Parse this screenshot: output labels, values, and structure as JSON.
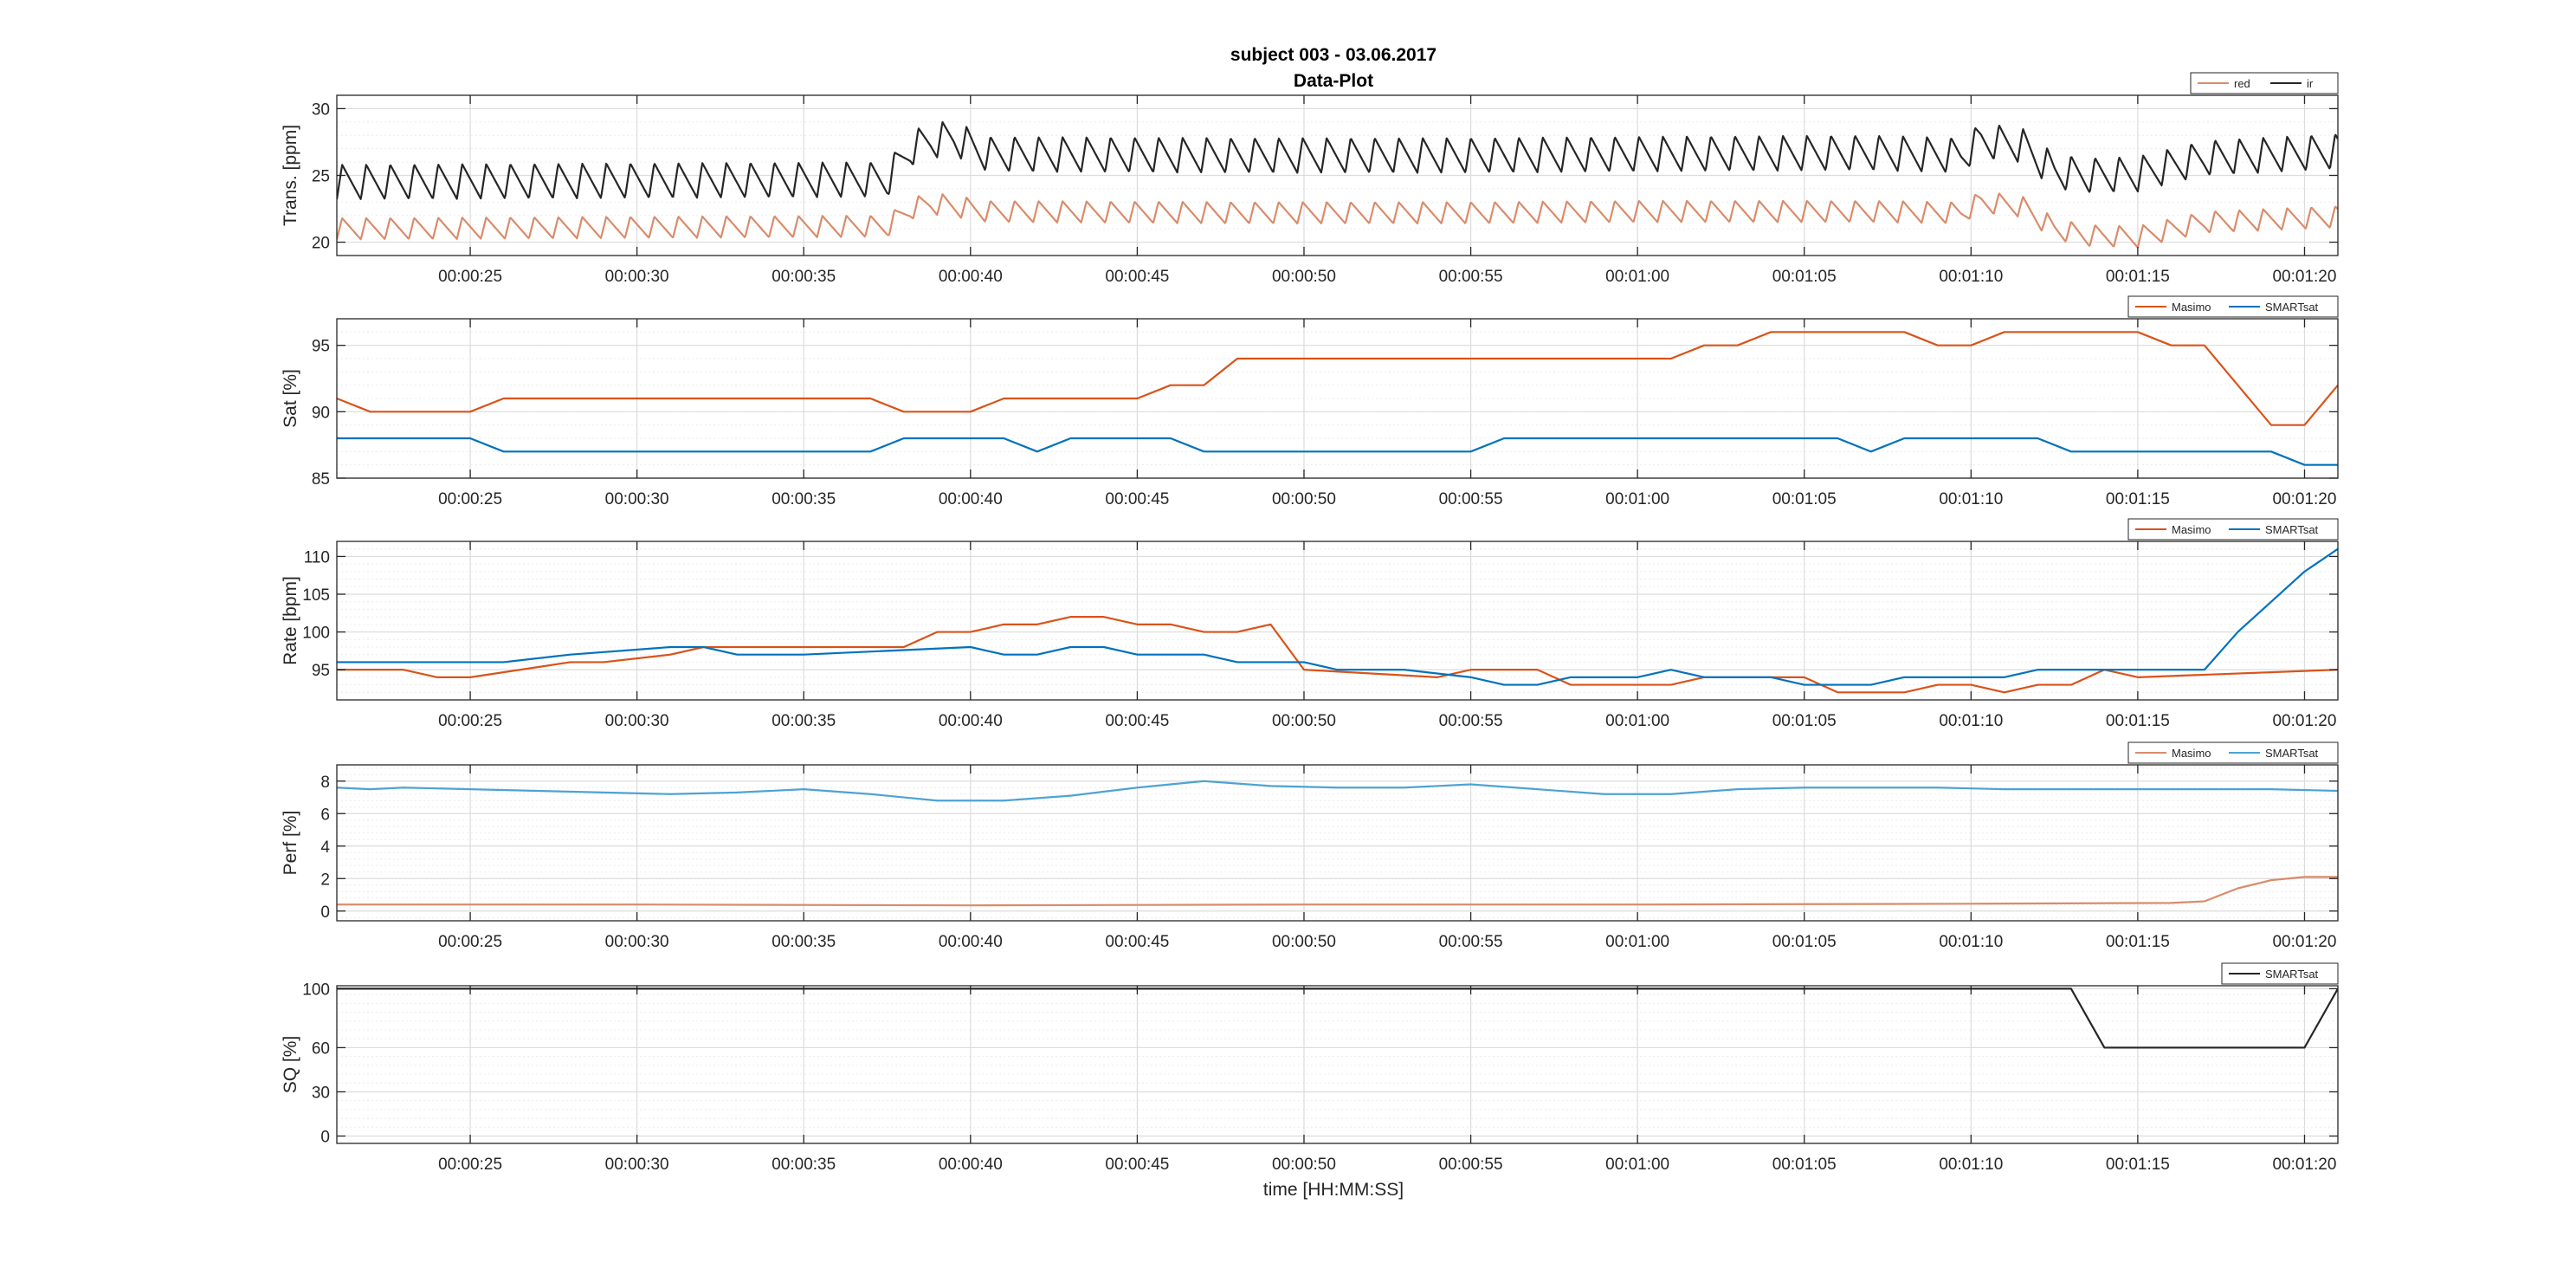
{
  "figure": {
    "title_line1": "subject 003 - 03.06.2017",
    "title_line2": "Data-Plot",
    "xlabel": "time [HH:MM:SS]"
  },
  "chart_data": [
    {
      "type": "line",
      "ylabel": "Trans. [ppm]",
      "xlim": [
        21,
        81
      ],
      "ylim": [
        19,
        31
      ],
      "yticks": [
        20,
        25,
        30
      ],
      "xticks": [
        25,
        30,
        35,
        40,
        45,
        50,
        55,
        60,
        65,
        70,
        75,
        80
      ],
      "xtick_labels": [
        "00:00:25",
        "00:00:30",
        "00:00:35",
        "00:00:40",
        "00:00:45",
        "00:00:50",
        "00:00:55",
        "00:01:00",
        "00:01:05",
        "00:01:10",
        "00:01:15",
        "00:01:20"
      ],
      "grid": true,
      "legend_position": "top-right",
      "series": [
        {
          "name": "red",
          "color": "#D98C6B",
          "waveform": true,
          "period": 0.72,
          "amplitude": 1.6,
          "baseline_x": [
            21,
            37.5,
            38.2,
            38.8,
            39.5,
            40.5,
            48,
            55,
            60,
            67,
            69.7,
            70.3,
            71.5,
            72.5,
            73.5,
            75,
            77,
            81
          ],
          "baseline_y": [
            21.0,
            21.2,
            22.5,
            22.9,
            22.7,
            22.3,
            22.2,
            22.2,
            22.3,
            22.3,
            22.2,
            23.0,
            22.7,
            21.0,
            20.5,
            20.4,
            21.5,
            21.9
          ]
        },
        {
          "name": "ir",
          "color": "#262626",
          "waveform": true,
          "period": 0.72,
          "amplitude": 2.6,
          "baseline_x": [
            21,
            37.5,
            38.2,
            38.8,
            39.5,
            40.5,
            48,
            55,
            60,
            67,
            69.7,
            70.3,
            71.5,
            72.5,
            73.5,
            75,
            77,
            81
          ],
          "baseline_y": [
            24.5,
            24.7,
            27.0,
            27.6,
            27.8,
            26.6,
            26.5,
            26.5,
            26.6,
            26.7,
            26.5,
            27.6,
            27.3,
            25.3,
            25.0,
            25.1,
            26.3,
            26.8
          ]
        }
      ]
    },
    {
      "type": "line",
      "ylabel": "Sat [%]",
      "xlim": [
        21,
        81
      ],
      "ylim": [
        85,
        97
      ],
      "yticks": [
        85,
        90,
        95
      ],
      "xticks": [
        25,
        30,
        35,
        40,
        45,
        50,
        55,
        60,
        65,
        70,
        75,
        80
      ],
      "xtick_labels": [
        "00:00:25",
        "00:00:30",
        "00:00:35",
        "00:00:40",
        "00:00:45",
        "00:00:50",
        "00:00:55",
        "00:01:00",
        "00:01:05",
        "00:01:10",
        "00:01:15",
        "00:01:20"
      ],
      "grid": true,
      "legend_position": "top-right",
      "series": [
        {
          "name": "Masimo",
          "color": "#D95319",
          "x": [
            21,
            22,
            25,
            26,
            37,
            38,
            40,
            41,
            45,
            46,
            47,
            48,
            61,
            62,
            63,
            64,
            65,
            68,
            69,
            70,
            71,
            75,
            76,
            77,
            79,
            80,
            81
          ],
          "y": [
            91,
            90,
            90,
            91,
            91,
            90,
            90,
            91,
            91,
            92,
            92,
            94,
            94,
            95,
            95,
            96,
            96,
            96,
            95,
            95,
            96,
            96,
            95,
            95,
            89,
            89,
            92
          ]
        },
        {
          "name": "SMARTsat",
          "color": "#0072BD",
          "x": [
            21,
            25,
            26,
            37,
            38,
            41,
            42,
            43,
            46,
            47,
            55,
            56,
            66,
            67,
            68,
            72,
            73,
            79,
            80,
            81
          ],
          "y": [
            88,
            88,
            87,
            87,
            88,
            88,
            87,
            88,
            88,
            87,
            87,
            88,
            88,
            87,
            88,
            88,
            87,
            87,
            86,
            86
          ]
        }
      ]
    },
    {
      "type": "line",
      "ylabel": "Rate [bpm]",
      "xlim": [
        21,
        81
      ],
      "ylim": [
        91,
        112
      ],
      "yticks": [
        95,
        100,
        105,
        110
      ],
      "xticks": [
        25,
        30,
        35,
        40,
        45,
        50,
        55,
        60,
        65,
        70,
        75,
        80
      ],
      "xtick_labels": [
        "00:00:25",
        "00:00:30",
        "00:00:35",
        "00:00:40",
        "00:00:45",
        "00:00:50",
        "00:00:55",
        "00:01:00",
        "00:01:05",
        "00:01:10",
        "00:01:15",
        "00:01:20"
      ],
      "grid": true,
      "legend_position": "top-right",
      "series": [
        {
          "name": "Masimo",
          "color": "#D95319",
          "x": [
            21,
            23,
            24,
            25,
            28,
            29,
            31,
            32,
            38,
            39,
            40,
            41,
            42,
            43,
            44,
            45,
            46,
            47,
            48,
            49,
            50,
            54,
            55,
            57,
            58,
            61,
            62,
            63,
            65,
            66,
            67,
            68,
            69,
            70,
            71,
            72,
            73,
            74,
            75,
            81
          ],
          "y": [
            95,
            95,
            94,
            94,
            96,
            96,
            97,
            98,
            98,
            100,
            100,
            101,
            101,
            102,
            102,
            101,
            101,
            100,
            100,
            101,
            95,
            94,
            95,
            95,
            93,
            93,
            94,
            94,
            94,
            92,
            92,
            92,
            93,
            93,
            92,
            93,
            93,
            95,
            94,
            95
          ]
        },
        {
          "name": "SMARTsat",
          "color": "#0072BD",
          "x": [
            21,
            26,
            28,
            31,
            32,
            33,
            34,
            35,
            40,
            41,
            42,
            43,
            44,
            45,
            46,
            47,
            48,
            49,
            50,
            51,
            52,
            53,
            55,
            56,
            57,
            58,
            59,
            60,
            61,
            62,
            64,
            65,
            67,
            68,
            70,
            71,
            72,
            74,
            75,
            77,
            78,
            79,
            80,
            81
          ],
          "y": [
            96,
            96,
            97,
            98,
            98,
            97,
            97,
            97,
            98,
            97,
            97,
            98,
            98,
            97,
            97,
            97,
            96,
            96,
            96,
            95,
            95,
            95,
            94,
            93,
            93,
            94,
            94,
            94,
            95,
            94,
            94,
            93,
            93,
            94,
            94,
            94,
            95,
            95,
            95,
            95,
            100,
            104,
            108,
            111
          ]
        }
      ]
    },
    {
      "type": "line",
      "ylabel": "Perf [%]",
      "xlim": [
        21,
        81
      ],
      "ylim": [
        -0.6,
        9
      ],
      "yticks": [
        0,
        2,
        4,
        6,
        8
      ],
      "xticks": [
        25,
        30,
        35,
        40,
        45,
        50,
        55,
        60,
        65,
        70,
        75,
        80
      ],
      "xtick_labels": [
        "00:00:25",
        "00:00:30",
        "00:00:35",
        "00:00:40",
        "00:00:45",
        "00:00:50",
        "00:00:55",
        "00:01:00",
        "00:01:05",
        "00:01:10",
        "00:01:15",
        "00:01:20"
      ],
      "grid": true,
      "legend_position": "top-right",
      "series": [
        {
          "name": "Masimo",
          "color": "#D98C6B",
          "x": [
            21,
            30,
            40,
            50,
            60,
            70,
            76,
            77,
            78,
            79,
            80,
            81
          ],
          "y": [
            0.4,
            0.4,
            0.35,
            0.4,
            0.4,
            0.45,
            0.5,
            0.6,
            1.4,
            1.9,
            2.1,
            2.1
          ]
        },
        {
          "name": "SMARTsat",
          "color": "#4DA3D4",
          "x": [
            21,
            22,
            23,
            25,
            27,
            29,
            31,
            33,
            35,
            37,
            39,
            41,
            43,
            45,
            47,
            49,
            51,
            53,
            55,
            57,
            59,
            61,
            63,
            65,
            67,
            69,
            71,
            73,
            75,
            77,
            79,
            81
          ],
          "y": [
            7.6,
            7.5,
            7.6,
            7.5,
            7.4,
            7.3,
            7.2,
            7.3,
            7.5,
            7.2,
            6.8,
            6.8,
            7.1,
            7.6,
            8.0,
            7.7,
            7.6,
            7.6,
            7.8,
            7.5,
            7.2,
            7.2,
            7.5,
            7.6,
            7.6,
            7.6,
            7.5,
            7.5,
            7.5,
            7.5,
            7.5,
            7.4
          ]
        }
      ]
    },
    {
      "type": "line",
      "ylabel": "SQ [%]",
      "xlim": [
        21,
        81
      ],
      "ylim": [
        -5,
        102
      ],
      "yticks": [
        0,
        30,
        60,
        100
      ],
      "xticks": [
        25,
        30,
        35,
        40,
        45,
        50,
        55,
        60,
        65,
        70,
        75,
        80
      ],
      "xtick_labels": [
        "00:00:25",
        "00:00:30",
        "00:00:35",
        "00:00:40",
        "00:00:45",
        "00:00:50",
        "00:00:55",
        "00:01:00",
        "00:01:05",
        "00:01:10",
        "00:01:15",
        "00:01:20"
      ],
      "grid": true,
      "legend_position": "top-right",
      "series": [
        {
          "name": "SMARTsat",
          "color": "#262626",
          "x": [
            21,
            73,
            74,
            80,
            81
          ],
          "y": [
            100,
            100,
            60,
            60,
            100
          ]
        }
      ]
    }
  ]
}
